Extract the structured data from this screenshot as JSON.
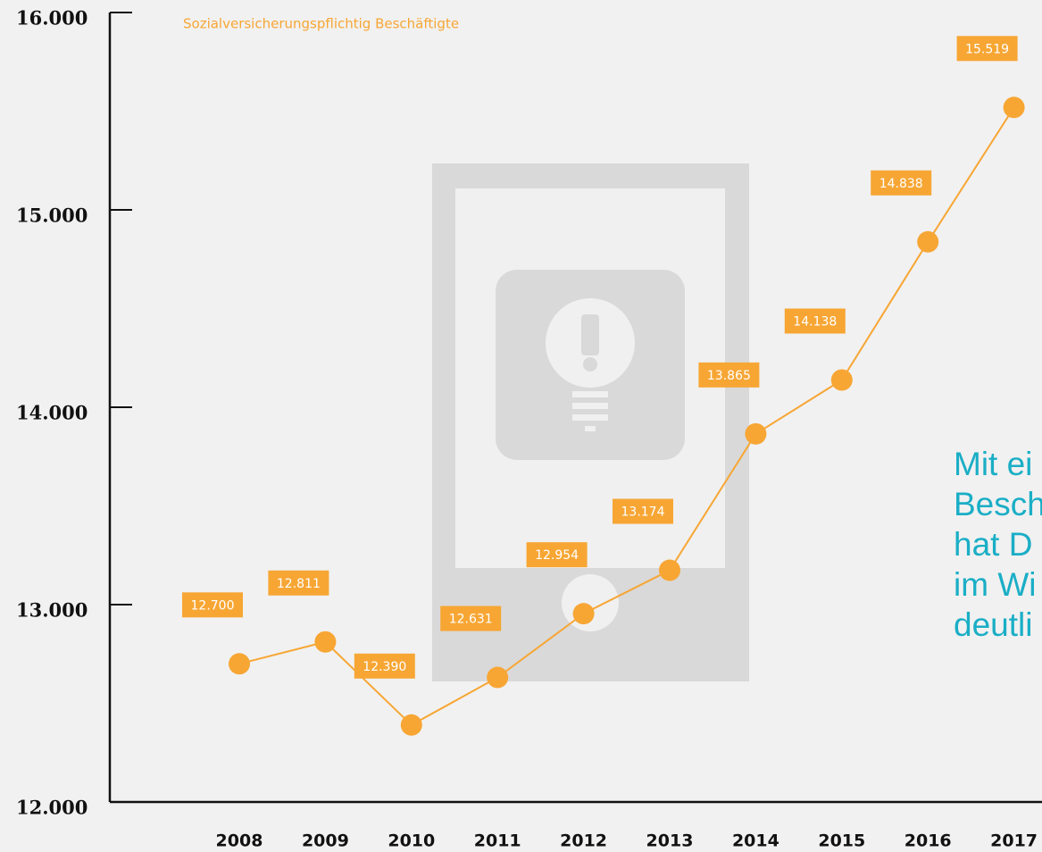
{
  "chart_data": {
    "type": "line",
    "categories": [
      "2008",
      "2009",
      "2010",
      "2011",
      "2012",
      "2013",
      "2014",
      "2015",
      "2016",
      "2017"
    ],
    "series": [
      {
        "name": "Sozialversicherungspflichtig Beschäftigte",
        "color": "#f7a634",
        "values": [
          12700,
          12811,
          12390,
          12631,
          12954,
          13174,
          13865,
          14138,
          14838,
          15519
        ],
        "value_labels": [
          "12.700",
          "12.811",
          "12.390",
          "12.631",
          "12.954",
          "13.174",
          "13.865",
          "14.138",
          "14.838",
          "15.519"
        ]
      }
    ],
    "ylim": [
      12000,
      16000
    ],
    "yticks": [
      {
        "value": 12000,
        "label": "12.000"
      },
      {
        "value": 13000,
        "label": "13.000"
      },
      {
        "value": 14000,
        "label": "14.000"
      },
      {
        "value": 15000,
        "label": "15.000"
      },
      {
        "value": 16000,
        "label": "16.000"
      }
    ],
    "annotation": [
      "Mit ei",
      "Besch",
      "hat D",
      "im Wi",
      "deutli"
    ]
  }
}
